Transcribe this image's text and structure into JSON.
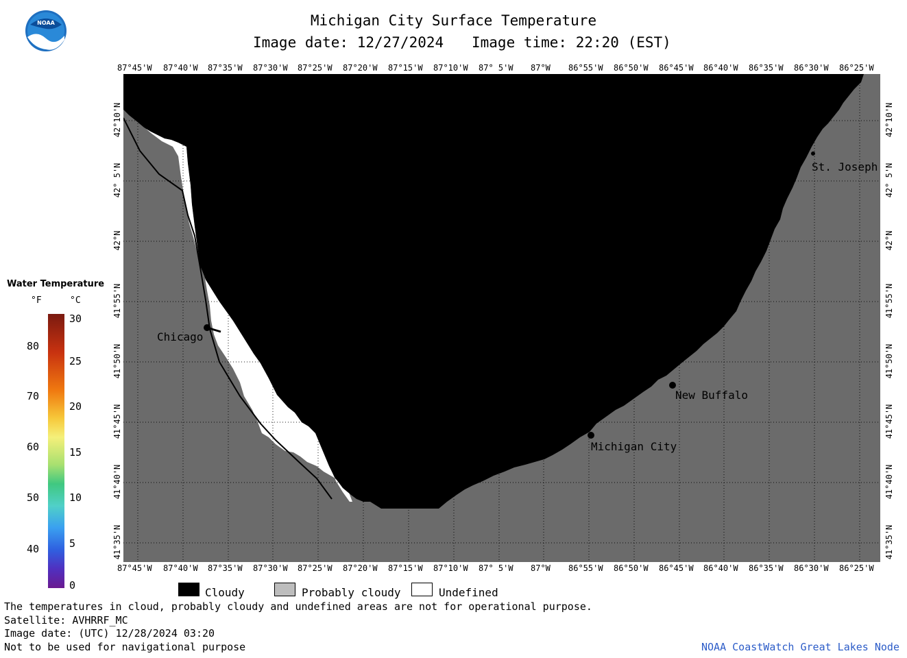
{
  "header": {
    "title": "Michigan City Surface Temperature",
    "date_label": "Image date: 12/27/2024",
    "time_label": "Image time: 22:20 (EST)"
  },
  "logo": {
    "name": "NOAA",
    "text": "NOAA"
  },
  "colorbar": {
    "title": "Water Temperature",
    "unit_f": "°F",
    "unit_c": "°C",
    "f_ticks": [
      "80",
      "70",
      "60",
      "50",
      "40"
    ],
    "c_ticks": [
      "30",
      "25",
      "20",
      "15",
      "10",
      "5",
      "0"
    ]
  },
  "map": {
    "lon_labels": [
      "87°45'W",
      "87°40'W",
      "87°35'W",
      "87°30'W",
      "87°25'W",
      "87°20'W",
      "87°15'W",
      "87°10'W",
      "87° 5'W",
      "87°W",
      "86°55'W",
      "86°50'W",
      "86°45'W",
      "86°40'W",
      "86°35'W",
      "86°30'W",
      "86°25'W"
    ],
    "lat_labels": [
      "42°10'N",
      "42° 5'N",
      "42°N",
      "41°55'N",
      "41°50'N",
      "41°45'N",
      "41°40'N",
      "41°35'N"
    ],
    "places": {
      "chicago": "Chicago",
      "st_joseph": "St. Joseph",
      "new_buffalo": "New Buffalo",
      "michigan_city": "Michigan City"
    },
    "colors": {
      "cloudy": "#000000",
      "probably_cloudy": "#6b6b6b",
      "undefined": "#ffffff"
    }
  },
  "legend": {
    "cloudy": "Cloudy",
    "probably_cloudy": "Probably cloudy",
    "undefined": "Undefined"
  },
  "footer": {
    "note": "The temperatures in cloud, probably cloudy and undefined areas are not for operational purpose.",
    "satellite": "Satellite: AVHRRF_MC",
    "utc_date": "Image date: (UTC) 12/28/2024  03:20",
    "nav_warning": "Not to be used for navigational purpose",
    "credit": "NOAA CoastWatch Great Lakes Node"
  }
}
